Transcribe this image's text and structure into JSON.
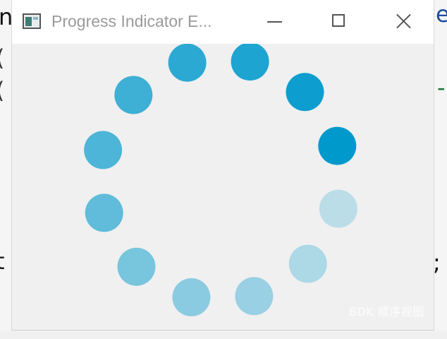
{
  "window": {
    "title": "Progress Indicator E..."
  },
  "background_glyphs": {
    "top_left": "n",
    "left_1": "(",
    "left_2": "(",
    "mid_left": "t",
    "top_right": "e",
    "right_1": "-",
    "mid_right": ";"
  },
  "progress_indicator": {
    "dot_count": 12,
    "base_color": "#0099cc",
    "active_color": "#0096c8"
  },
  "watermark": "BDK 顺序视图",
  "icons": {
    "app": "app-window-icon",
    "minimize": "minimize-icon",
    "maximize": "maximize-icon",
    "close": "close-icon"
  }
}
